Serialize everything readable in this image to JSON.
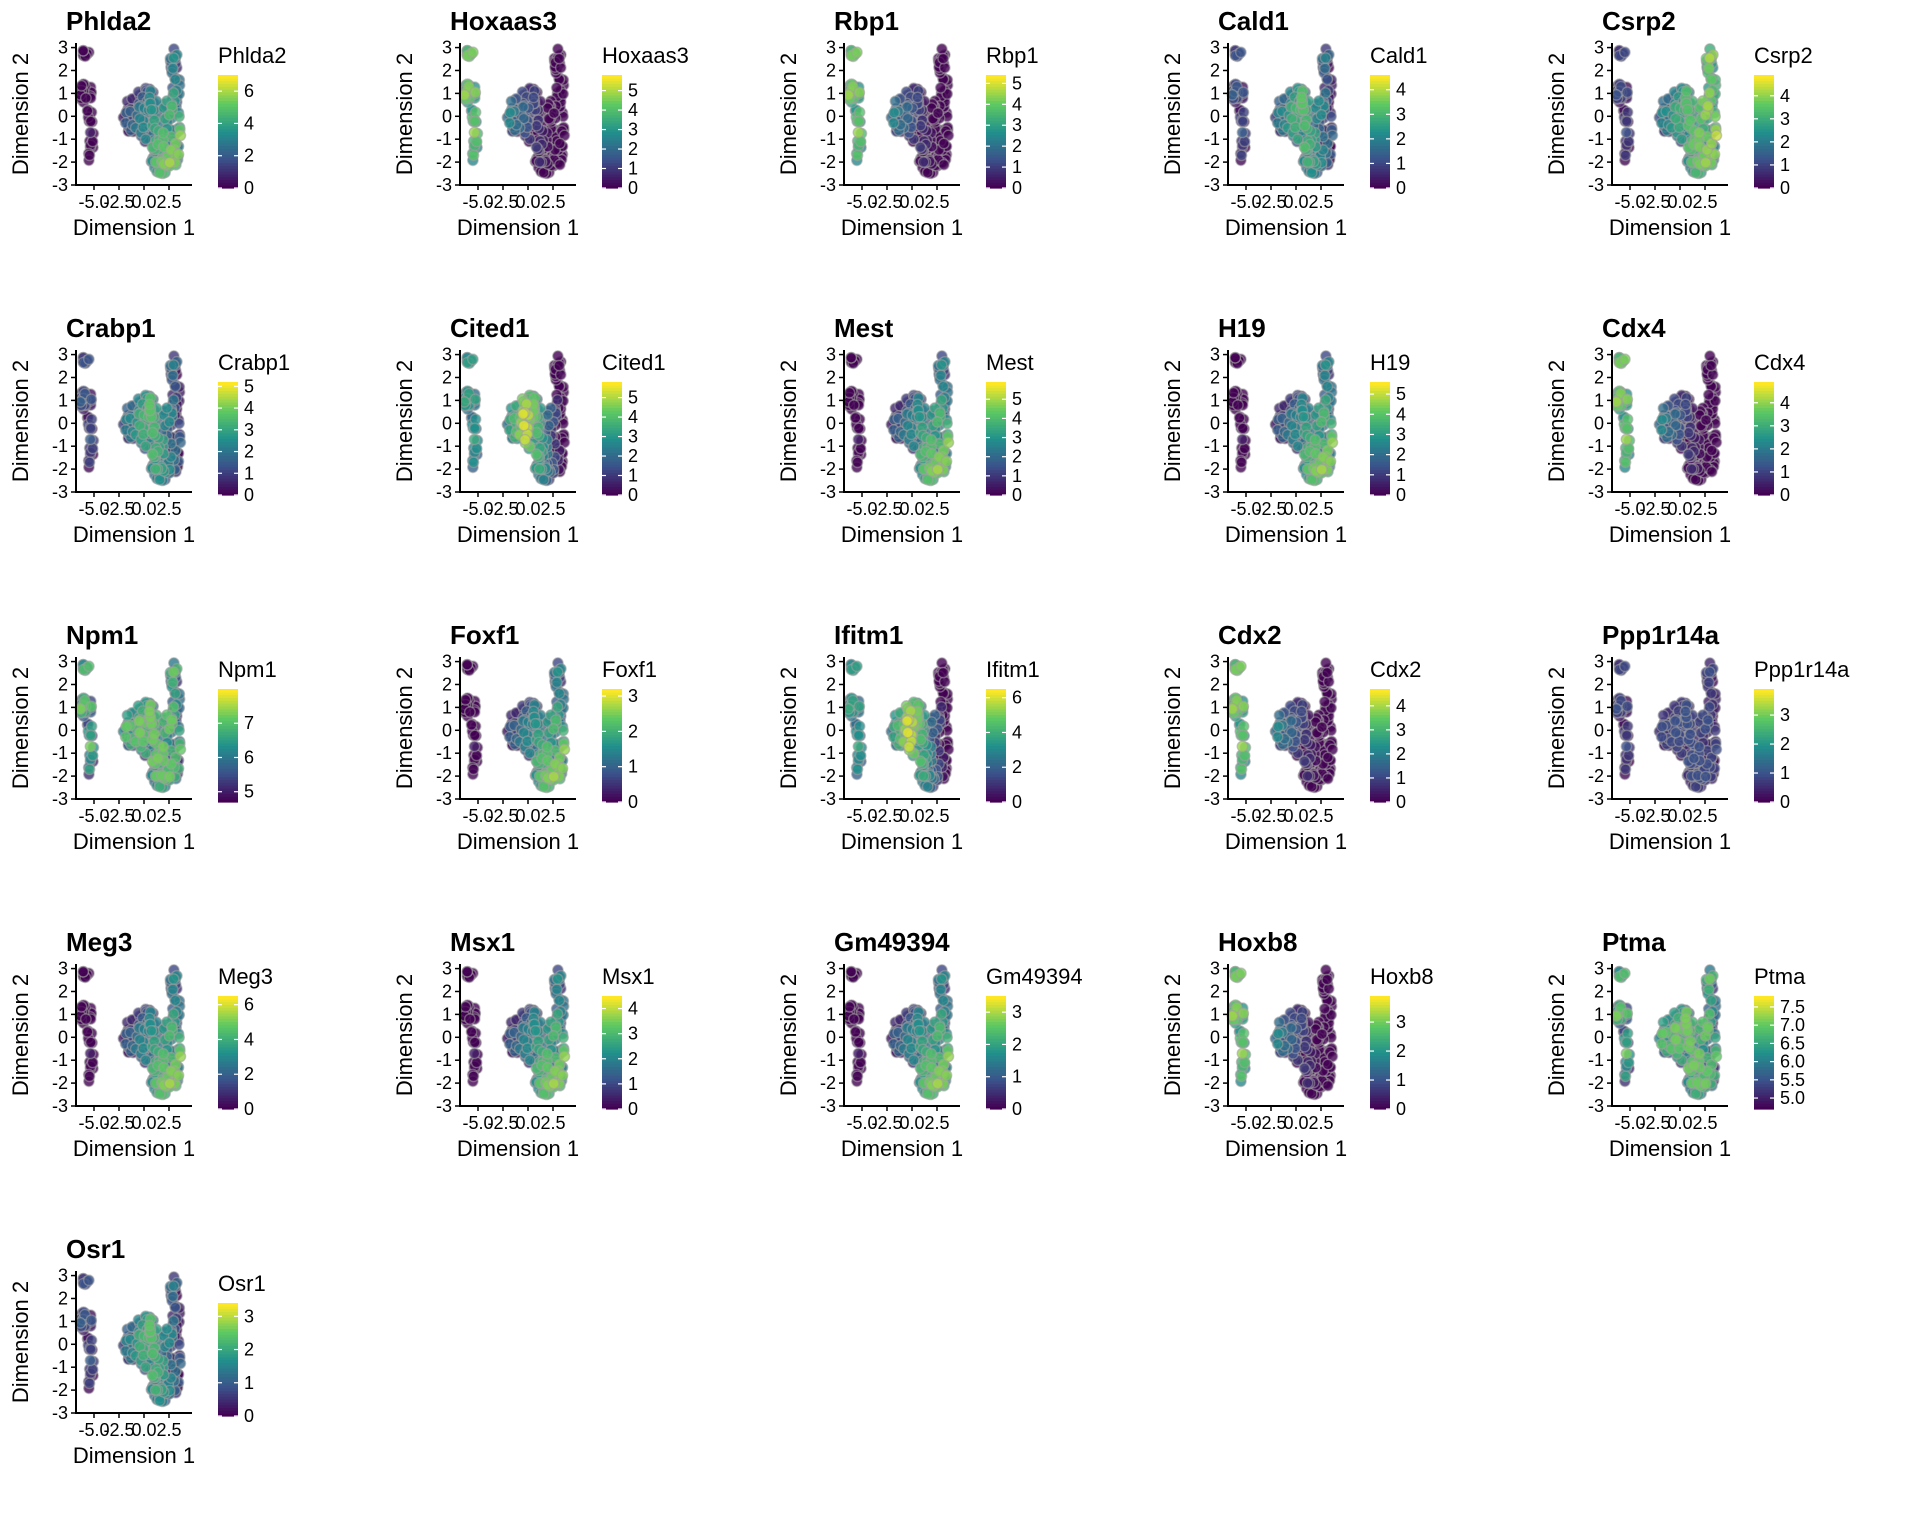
{
  "x_axis_label": "Dimension 1",
  "y_axis_label": "Dimension 2",
  "x_ticks": [
    "-5.0",
    "-2.5",
    "0.0",
    "2.5"
  ],
  "y_ticks": [
    "-3",
    "-2",
    "-1",
    "0",
    "1",
    "2",
    "3"
  ],
  "colormap": [
    "#440154",
    "#3b528b",
    "#21918c",
    "#5ec962",
    "#fde725"
  ],
  "chart_data": [
    {
      "type": "scatter",
      "title": "Phlda2",
      "legend_title": "Phlda2",
      "xlim": [
        -6.8,
        4.8
      ],
      "ylim": [
        -3,
        3.2
      ],
      "legend_range": [
        0,
        7
      ],
      "legend_ticks": [
        0,
        2,
        4,
        6
      ],
      "high_region": "lower-right"
    },
    {
      "type": "scatter",
      "title": "Hoxaas3",
      "legend_title": "Hoxaas3",
      "xlim": [
        -6.8,
        4.8
      ],
      "ylim": [
        -3,
        3.2
      ],
      "legend_range": [
        0,
        5.8
      ],
      "legend_ticks": [
        0,
        1,
        2,
        3,
        4,
        5
      ],
      "high_region": "left"
    },
    {
      "type": "scatter",
      "title": "Rbp1",
      "legend_title": "Rbp1",
      "xlim": [
        -6.8,
        4.8
      ],
      "ylim": [
        -3,
        3.2
      ],
      "legend_range": [
        0,
        5.4
      ],
      "legend_ticks": [
        0,
        1,
        2,
        3,
        4,
        5
      ],
      "high_region": "left"
    },
    {
      "type": "scatter",
      "title": "Cald1",
      "legend_title": "Cald1",
      "xlim": [
        -6.8,
        4.8
      ],
      "ylim": [
        -3,
        3.2
      ],
      "legend_range": [
        0,
        4.6
      ],
      "legend_ticks": [
        0,
        1,
        2,
        3,
        4
      ],
      "high_region": "mid"
    },
    {
      "type": "scatter",
      "title": "Csrp2",
      "legend_title": "Csrp2",
      "xlim": [
        -6.8,
        4.8
      ],
      "ylim": [
        -3,
        3.2
      ],
      "legend_range": [
        0,
        4.9
      ],
      "legend_ticks": [
        0,
        1,
        2,
        3,
        4
      ],
      "high_region": "right"
    },
    {
      "type": "scatter",
      "title": "Crabp1",
      "legend_title": "Crabp1",
      "xlim": [
        -6.8,
        4.8
      ],
      "ylim": [
        -3,
        3.2
      ],
      "legend_range": [
        0,
        5.2
      ],
      "legend_ticks": [
        0,
        1,
        2,
        3,
        4,
        5
      ],
      "high_region": "mid"
    },
    {
      "type": "scatter",
      "title": "Cited1",
      "legend_title": "Cited1",
      "xlim": [
        -6.8,
        4.8
      ],
      "ylim": [
        -3,
        3.2
      ],
      "legend_range": [
        0,
        5.8
      ],
      "legend_ticks": [
        0,
        1,
        2,
        3,
        4,
        5
      ],
      "high_region": "left-mid"
    },
    {
      "type": "scatter",
      "title": "Mest",
      "legend_title": "Mest",
      "xlim": [
        -6.8,
        4.8
      ],
      "ylim": [
        -3,
        3.2
      ],
      "legend_range": [
        0,
        5.9
      ],
      "legend_ticks": [
        0,
        1,
        2,
        3,
        4,
        5
      ],
      "high_region": "lower-right"
    },
    {
      "type": "scatter",
      "title": "H19",
      "legend_title": "H19",
      "xlim": [
        -6.8,
        4.8
      ],
      "ylim": [
        -3,
        3.2
      ],
      "legend_range": [
        0,
        5.6
      ],
      "legend_ticks": [
        0,
        1,
        2,
        3,
        4,
        5
      ],
      "high_region": "lower-right"
    },
    {
      "type": "scatter",
      "title": "Cdx4",
      "legend_title": "Cdx4",
      "xlim": [
        -6.8,
        4.8
      ],
      "ylim": [
        -3,
        3.2
      ],
      "legend_range": [
        0,
        4.9
      ],
      "legend_ticks": [
        0,
        1,
        2,
        3,
        4
      ],
      "high_region": "left"
    },
    {
      "type": "scatter",
      "title": "Npm1",
      "legend_title": "Npm1",
      "xlim": [
        -6.8,
        4.8
      ],
      "ylim": [
        -3,
        3.2
      ],
      "legend_range": [
        4.7,
        8.0
      ],
      "legend_ticks": [
        5,
        6,
        7
      ],
      "high_region": "all"
    },
    {
      "type": "scatter",
      "title": "Foxf1",
      "legend_title": "Foxf1",
      "xlim": [
        -6.8,
        4.8
      ],
      "ylim": [
        -3,
        3.2
      ],
      "legend_range": [
        0,
        3.2
      ],
      "legend_ticks": [
        0,
        1,
        2,
        3
      ],
      "high_region": "lower-right"
    },
    {
      "type": "scatter",
      "title": "Ifitm1",
      "legend_title": "Ifitm1",
      "xlim": [
        -6.8,
        4.8
      ],
      "ylim": [
        -3,
        3.2
      ],
      "legend_range": [
        0,
        6.5
      ],
      "legend_ticks": [
        0,
        2,
        4,
        6
      ],
      "high_region": "left-mid"
    },
    {
      "type": "scatter",
      "title": "Cdx2",
      "legend_title": "Cdx2",
      "xlim": [
        -6.8,
        4.8
      ],
      "ylim": [
        -3,
        3.2
      ],
      "legend_range": [
        0,
        4.7
      ],
      "legend_ticks": [
        0,
        1,
        2,
        3,
        4
      ],
      "high_region": "left"
    },
    {
      "type": "scatter",
      "title": "Ppp1r14a",
      "legend_title": "Ppp1r14a",
      "xlim": [
        -6.8,
        4.8
      ],
      "ylim": [
        -3,
        3.2
      ],
      "legend_range": [
        0,
        3.9
      ],
      "legend_ticks": [
        0,
        1,
        2,
        3
      ],
      "high_region": "none"
    },
    {
      "type": "scatter",
      "title": "Meg3",
      "legend_title": "Meg3",
      "xlim": [
        -6.8,
        4.8
      ],
      "ylim": [
        -3,
        3.2
      ],
      "legend_range": [
        0,
        6.5
      ],
      "legend_ticks": [
        0,
        2,
        4,
        6
      ],
      "high_region": "lower-right"
    },
    {
      "type": "scatter",
      "title": "Msx1",
      "legend_title": "Msx1",
      "xlim": [
        -6.8,
        4.8
      ],
      "ylim": [
        -3,
        3.2
      ],
      "legend_range": [
        0,
        4.5
      ],
      "legend_ticks": [
        0,
        1,
        2,
        3,
        4
      ],
      "high_region": "lower-right"
    },
    {
      "type": "scatter",
      "title": "Gm49394",
      "legend_title": "Gm49394",
      "xlim": [
        -6.8,
        4.8
      ],
      "ylim": [
        -3,
        3.2
      ],
      "legend_range": [
        0,
        3.5
      ],
      "legend_ticks": [
        0,
        1,
        2,
        3
      ],
      "high_region": "lower-right"
    },
    {
      "type": "scatter",
      "title": "Hoxb8",
      "legend_title": "Hoxb8",
      "xlim": [
        -6.8,
        4.8
      ],
      "ylim": [
        -3,
        3.2
      ],
      "legend_range": [
        0,
        3.9
      ],
      "legend_ticks": [
        0,
        1,
        2,
        3
      ],
      "high_region": "left"
    },
    {
      "type": "scatter",
      "title": "Ptma",
      "legend_title": "Ptma",
      "xlim": [
        -6.8,
        4.8
      ],
      "ylim": [
        -3,
        3.2
      ],
      "legend_range": [
        4.7,
        7.8
      ],
      "legend_ticks": [
        5.0,
        5.5,
        6.0,
        6.5,
        7.0,
        7.5
      ],
      "high_region": "all"
    },
    {
      "type": "scatter",
      "title": "Osr1",
      "legend_title": "Osr1",
      "xlim": [
        -6.8,
        4.8
      ],
      "ylim": [
        -3,
        3.2
      ],
      "legend_range": [
        0,
        3.4
      ],
      "legend_ticks": [
        0,
        1,
        2,
        3
      ],
      "high_region": "mid"
    }
  ]
}
